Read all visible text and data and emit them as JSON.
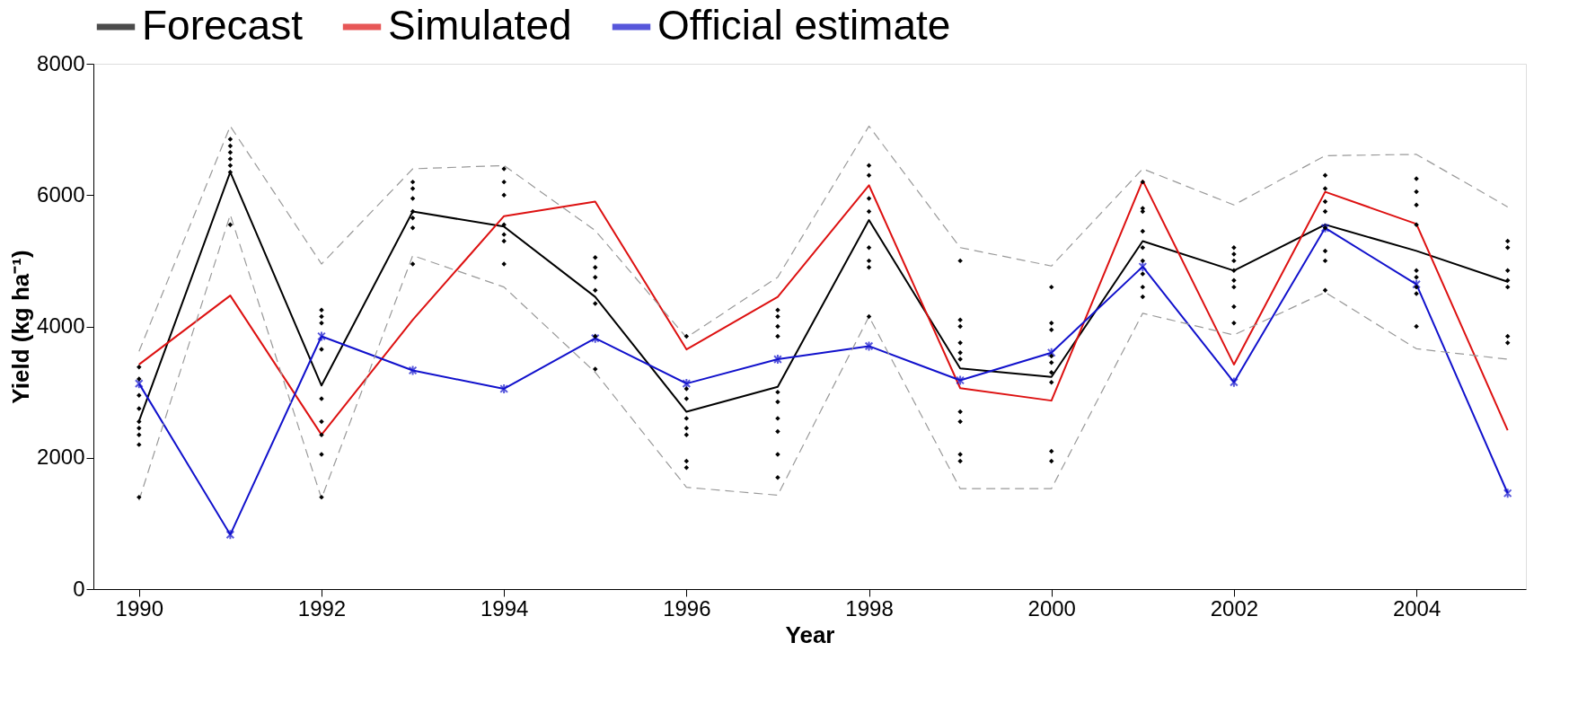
{
  "chart_data": {
    "type": "line",
    "xlabel": "Year",
    "ylabel": "Yield (kg ha⁻¹)",
    "x": [
      1990,
      1991,
      1992,
      1993,
      1994,
      1995,
      1996,
      1997,
      1998,
      1999,
      2000,
      2001,
      2002,
      2003,
      2004,
      2005
    ],
    "xlim": [
      1989.5,
      2005.2
    ],
    "xticks": [
      1990,
      1992,
      1994,
      1996,
      1998,
      2000,
      2002,
      2004
    ],
    "ylim": [
      0,
      8000
    ],
    "yticks": [
      0,
      2000,
      4000,
      6000,
      8000
    ],
    "grid": false,
    "legend": "top",
    "marker": "none",
    "line_style": "solid",
    "series": [
      {
        "name": "Forecast",
        "color": "#000000",
        "values": [
          2560,
          6350,
          3100,
          5750,
          5520,
          4450,
          2700,
          3080,
          5620,
          3360,
          3230,
          5300,
          4850,
          5550,
          5150,
          4680
        ]
      },
      {
        "name": "Simulated",
        "color": "#dd1111",
        "values": [
          3420,
          4470,
          2350,
          4100,
          5680,
          5900,
          3650,
          4450,
          6150,
          3060,
          2870,
          6220,
          3420,
          6050,
          5560,
          2420
        ]
      },
      {
        "name": "Official estimate",
        "color": "#1111cc",
        "marker": "cross",
        "values": [
          3130,
          830,
          3850,
          3330,
          3050,
          3820,
          3130,
          3500,
          3700,
          3180,
          3600,
          4910,
          3150,
          5500,
          4640,
          1460
        ]
      },
      {
        "color": "#999999",
        "line_style": "dashed",
        "values": [
          3620,
          7050,
          4950,
          6400,
          6450,
          5460,
          3830,
          4750,
          7050,
          5200,
          4920,
          6400,
          5850,
          6600,
          6620,
          5820
        ]
      },
      {
        "color": "#999999",
        "line_style": "dashed",
        "values": [
          1350,
          5700,
          1380,
          5080,
          4600,
          3300,
          1550,
          1430,
          4150,
          1530,
          1530,
          4200,
          3870,
          4520,
          3660,
          3500
        ]
      },
      {
        "type": "scatter",
        "marker": "diamond",
        "color": "#000000",
        "x": [
          1990,
          1990,
          1990,
          1990,
          1990,
          1990,
          1990,
          1990,
          1990,
          1991,
          1991,
          1991,
          1991,
          1991,
          1991,
          1991,
          1992,
          1992,
          1992,
          1992,
          1992,
          1992,
          1992,
          1992,
          1992,
          1993,
          1993,
          1993,
          1993,
          1993,
          1993,
          1993,
          1994,
          1994,
          1994,
          1994,
          1994,
          1994,
          1994,
          1995,
          1995,
          1995,
          1995,
          1995,
          1995,
          1995,
          1996,
          1996,
          1996,
          1996,
          1996,
          1996,
          1996,
          1996,
          1997,
          1997,
          1997,
          1997,
          1997,
          1997,
          1997,
          1997,
          1997,
          1997,
          1998,
          1998,
          1998,
          1998,
          1998,
          1998,
          1998,
          1998,
          1999,
          1999,
          1999,
          1999,
          1999,
          1999,
          1999,
          1999,
          1999,
          1999,
          2000,
          2000,
          2000,
          2000,
          2000,
          2000,
          2000,
          2000,
          2000,
          2001,
          2001,
          2001,
          2001,
          2001,
          2001,
          2001,
          2001,
          2001,
          2002,
          2002,
          2002,
          2002,
          2002,
          2002,
          2002,
          2002,
          2003,
          2003,
          2003,
          2003,
          2003,
          2003,
          2003,
          2003,
          2004,
          2004,
          2004,
          2004,
          2004,
          2004,
          2004,
          2004,
          2004,
          2005,
          2005,
          2005,
          2005,
          2005,
          2005,
          2005
        ],
        "values": [
          3380,
          3200,
          2950,
          2750,
          2550,
          2450,
          2350,
          2200,
          1400,
          6850,
          6750,
          6650,
          6550,
          6450,
          6350,
          5550,
          4250,
          4150,
          4050,
          3650,
          2900,
          2550,
          2350,
          2050,
          1400,
          6200,
          6100,
          5950,
          5750,
          5650,
          5500,
          4950,
          6400,
          6200,
          6000,
          5550,
          5400,
          5300,
          4950,
          5050,
          4900,
          4750,
          4550,
          4350,
          3850,
          3350,
          3850,
          3050,
          2900,
          2600,
          2450,
          2350,
          1950,
          1850,
          4250,
          4150,
          4000,
          3850,
          3000,
          2850,
          2600,
          2400,
          2050,
          1700,
          6450,
          6300,
          5950,
          5750,
          5200,
          5000,
          4900,
          4150,
          5000,
          4100,
          4000,
          3750,
          3600,
          3500,
          2700,
          2550,
          2050,
          1950,
          4600,
          4050,
          3950,
          3550,
          3450,
          3300,
          3150,
          2100,
          1950,
          6200,
          5800,
          5750,
          5450,
          5200,
          5000,
          4800,
          4600,
          4450,
          5200,
          5100,
          5000,
          4850,
          4700,
          4600,
          4300,
          4050,
          6300,
          6100,
          5900,
          5750,
          5500,
          5150,
          5000,
          4550,
          6250,
          6050,
          5850,
          5550,
          4850,
          4750,
          4600,
          4500,
          4000,
          5300,
          5200,
          4850,
          4700,
          4600,
          3850,
          3750
        ]
      }
    ]
  }
}
